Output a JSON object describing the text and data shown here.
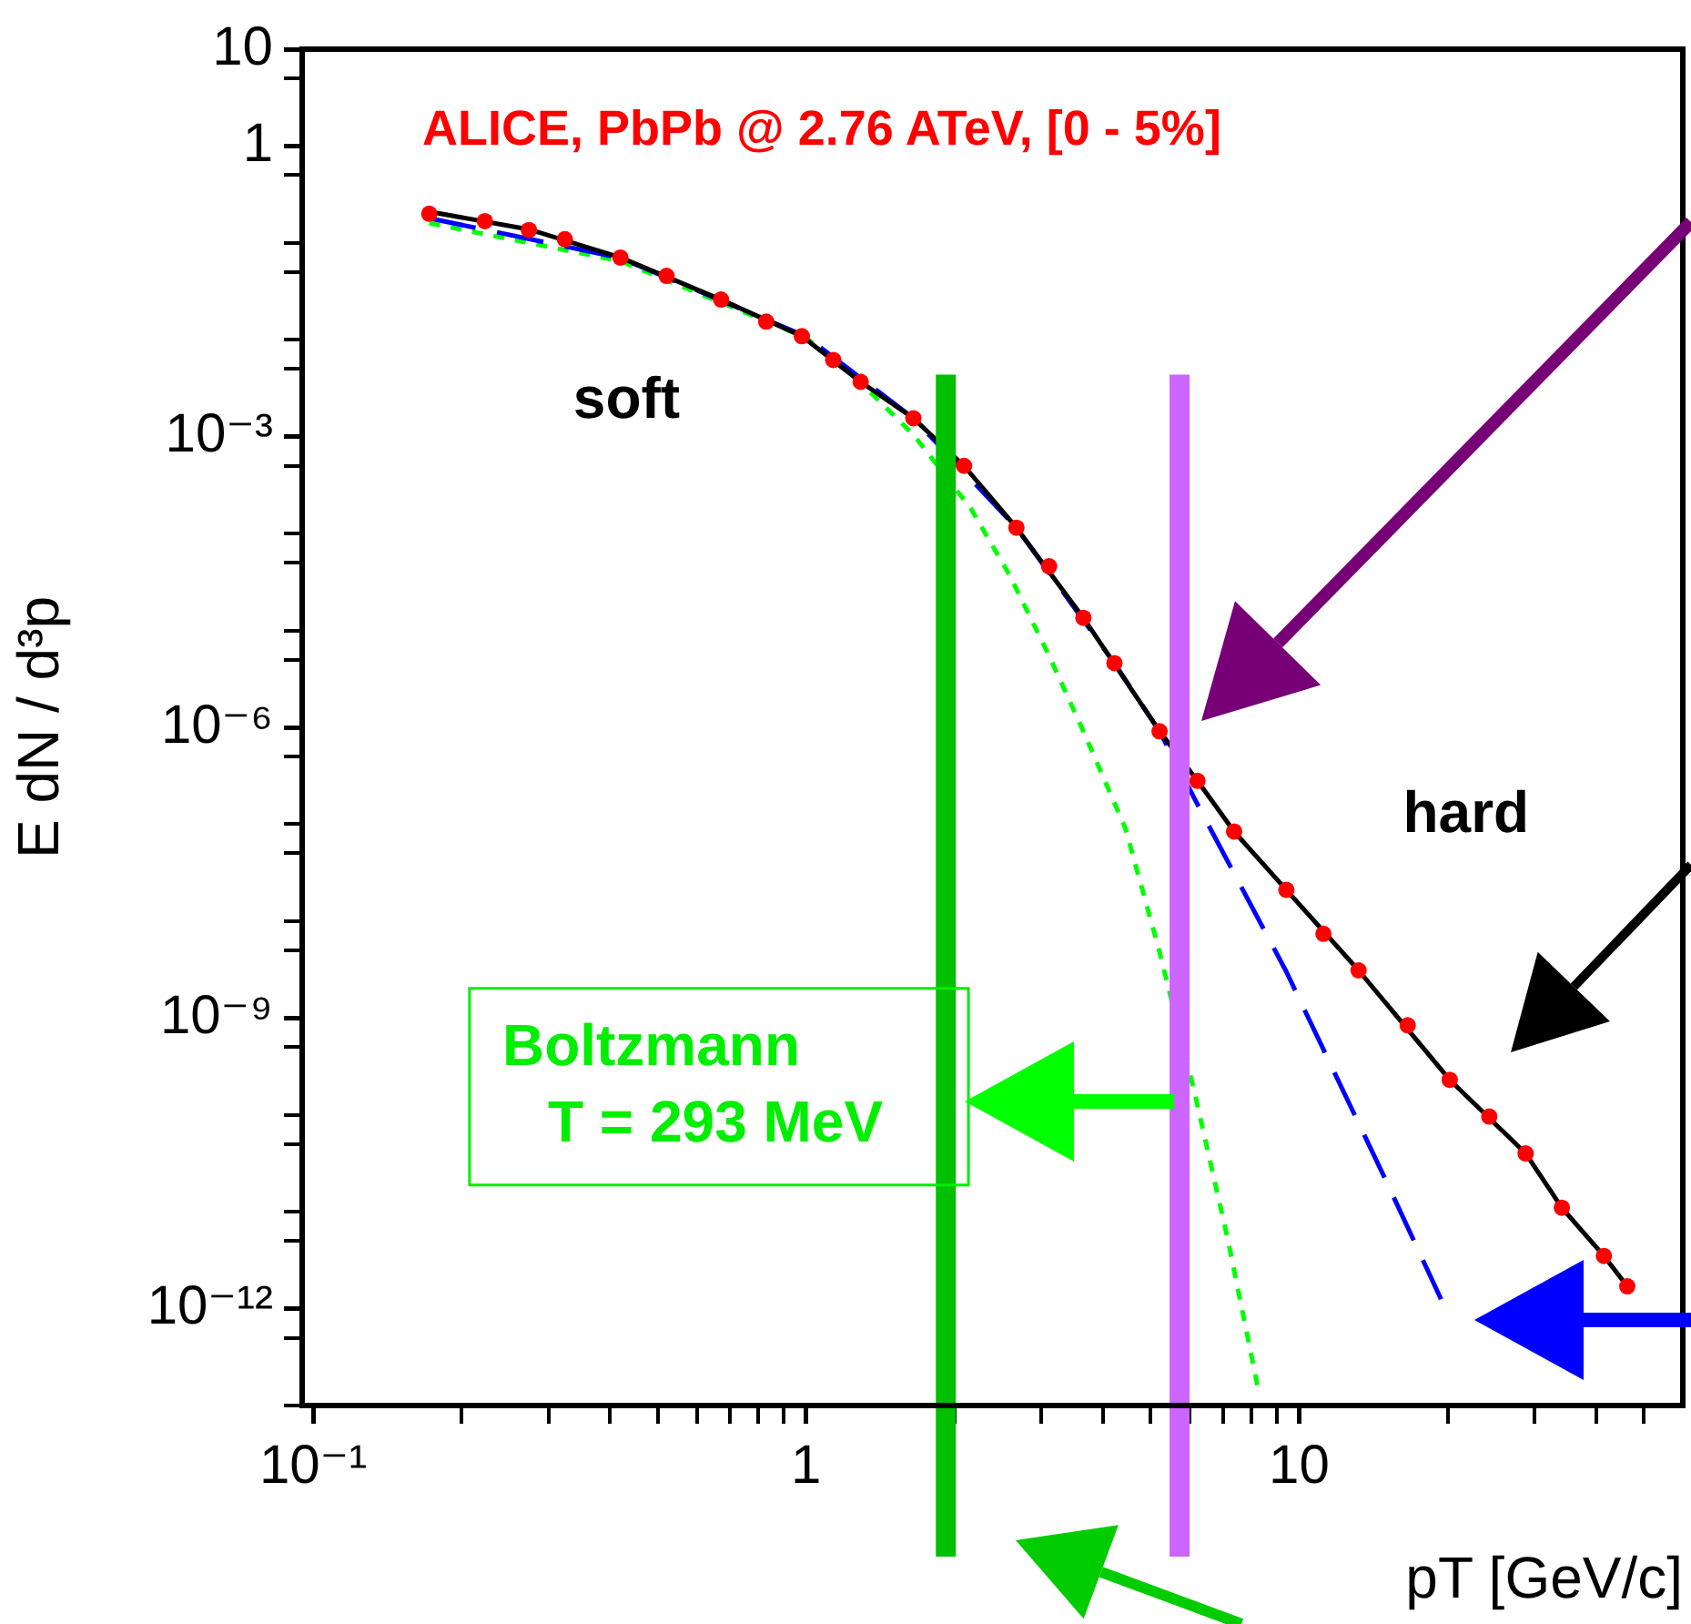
{
  "chart_data": {
    "type": "line",
    "title": "ALICE, PbPb @ 2.76 ATeV, [0 - 5%]",
    "xlabel": "pT [GeV/c]",
    "ylabel": "E dN / d³p",
    "log": "xy",
    "grid": false,
    "xlim": [
      0.095,
      60
    ],
    "ylim": [
      1e-13,
      10
    ],
    "xticks": [
      {
        "value": 0.1,
        "label": "10⁻¹"
      },
      {
        "value": 0.2,
        "label": null
      },
      {
        "value": 0.3,
        "label": null
      },
      {
        "value": 0.4,
        "label": null
      },
      {
        "value": 0.5,
        "label": null
      },
      {
        "value": 0.6,
        "label": null
      },
      {
        "value": 0.7,
        "label": null
      },
      {
        "value": 0.8,
        "label": null
      },
      {
        "value": 0.9,
        "label": null
      },
      1,
      {
        "value": 2,
        "label": null
      },
      {
        "value": 3,
        "label": null
      },
      {
        "value": 4,
        "label": null
      },
      {
        "value": 5,
        "label": null
      },
      {
        "value": 6,
        "label": null
      },
      {
        "value": 7,
        "label": null
      },
      {
        "value": 8,
        "label": null
      },
      {
        "value": 9,
        "label": null
      },
      10,
      {
        "value": 20,
        "label": null
      },
      {
        "value": 30,
        "label": null
      },
      {
        "value": 40,
        "label": null
      },
      {
        "value": 50,
        "label": null
      }
    ],
    "yticks": [
      {
        "value": 1e-13,
        "label": null
      },
      {
        "value": 5e-13,
        "label": null
      },
      {
        "value": 1e-12,
        "label": "10⁻¹²"
      },
      {
        "value": 5e-12,
        "label": null
      },
      {
        "value": 1e-11,
        "label": null
      },
      {
        "value": 5e-11,
        "label": null
      },
      {
        "value": 1e-10,
        "label": null
      },
      {
        "value": 5e-10,
        "label": null
      },
      {
        "value": 1e-09,
        "label": "10⁻⁹"
      },
      {
        "value": 5e-09,
        "label": null
      },
      {
        "value": 1e-08,
        "label": null
      },
      {
        "value": 5e-08,
        "label": null
      },
      {
        "value": 1e-07,
        "label": null
      },
      {
        "value": 5e-07,
        "label": null
      },
      {
        "value": 1e-06,
        "label": "10⁻⁶"
      },
      {
        "value": 5e-06,
        "label": null
      },
      {
        "value": 1e-05,
        "label": null
      },
      {
        "value": 5e-05,
        "label": null
      },
      {
        "value": 0.0001,
        "label": null
      },
      {
        "value": 0.0005,
        "label": null
      },
      {
        "value": 0.001,
        "label": "10⁻³"
      },
      {
        "value": 0.005,
        "label": null
      },
      {
        "value": 0.01,
        "label": null
      },
      {
        "value": 0.05,
        "label": null
      },
      {
        "value": 0.1,
        "label": null
      },
      {
        "value": 0.5,
        "label": null
      },
      1,
      {
        "value": 5,
        "label": null
      },
      10
    ],
    "series": [
      {
        "type": "line",
        "color": "#000000",
        "line_style": "solid",
        "x": [
          0.172,
          0.274,
          0.42,
          0.672,
          0.98,
          1.29,
          1.65,
          2.09,
          2.67,
          3.65,
          5.21,
          6.22,
          7.38,
          9.42,
          13.2,
          20.2,
          28.8,
          34.1,
          41.5,
          46.3
        ],
        "values": [
          0.21,
          0.138,
          0.0707,
          0.026,
          0.0109,
          0.00368,
          0.00155,
          0.0005,
          0.000115,
          1.35e-05,
          9.1e-07,
          2.8e-07,
          8.4e-08,
          2.1e-08,
          3.1e-09,
          2.3e-10,
          4e-11,
          1.1e-11,
          3.5e-12,
          1.7e-12
        ]
      },
      {
        "type": "line",
        "color": "#0000ff",
        "line_style": "dashed",
        "x": [
          0.172,
          0.42,
          1.0,
          1.65,
          2.67,
          4.22,
          5.21,
          6.33,
          9.42,
          15.0,
          19.4
        ],
        "values": [
          0.18,
          0.07,
          0.0108,
          0.00155,
          0.000115,
          4.6e-06,
          9.1e-07,
          1.35e-07,
          3e-09,
          2.1e-11,
          1.25e-12
        ]
      },
      {
        "type": "line",
        "color": "#00ff00",
        "line_style": "dotted",
        "x": [
          0.172,
          0.42,
          1.0,
          1.29,
          1.65,
          2.16,
          2.58,
          3.11,
          3.65,
          4.44,
          5.21,
          6.12,
          7.19,
          8.3
        ],
        "values": [
          0.16,
          0.065,
          0.0105,
          0.0036,
          0.00105,
          0.00018,
          3.8e-05,
          5.5e-06,
          9.1e-07,
          9.1e-08,
          4.8e-09,
          1.8e-10,
          4.8e-12,
          1.3e-13
        ]
      },
      {
        "type": "scatter",
        "color": "#ff0000",
        "marker": "circle",
        "x": [
          0.172,
          0.223,
          0.274,
          0.324,
          0.42,
          0.521,
          0.672,
          0.83,
          0.98,
          1.135,
          1.29,
          1.65,
          2.09,
          2.67,
          3.11,
          3.65,
          4.22,
          5.21,
          6.22,
          7.38,
          9.42,
          11.2,
          13.2,
          16.6,
          20.2,
          24.3,
          28.8,
          34.1,
          41.5,
          46.3
        ],
        "values": [
          0.2,
          0.168,
          0.136,
          0.109,
          0.0707,
          0.0457,
          0.026,
          0.0154,
          0.0109,
          0.0062,
          0.00368,
          0.00155,
          0.0005,
          0.000115,
          4.6e-05,
          1.35e-05,
          4.6e-06,
          9.1e-07,
          2.8e-07,
          8.4e-08,
          2.1e-08,
          7.4e-09,
          3.1e-09,
          8.4e-10,
          2.3e-10,
          9.6e-11,
          4e-11,
          1.1e-11,
          3.5e-12,
          1.7e-12
        ]
      }
    ],
    "ref_lines": [
      {
        "axis": "x",
        "value": 1.92,
        "color": "#00c000"
      },
      {
        "axis": "x",
        "value": 5.72,
        "color": "#cc66ff"
      }
    ],
    "annotations": [
      "soft",
      "hard",
      "Boltzmann\nT = 293 MeV"
    ]
  }
}
